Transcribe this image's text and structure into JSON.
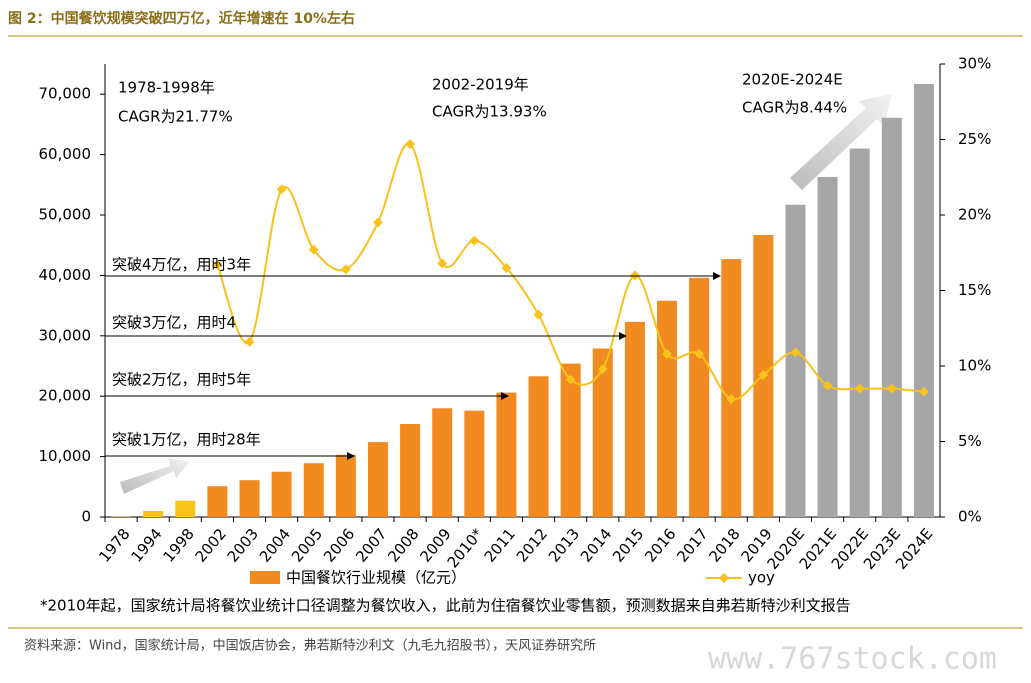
{
  "chart_data": {
    "type": "bar",
    "title": "图 2：中国餐饮规模突破四万亿，近年增速在 10%左右",
    "categories": [
      "1978",
      "1994",
      "1998",
      "2002",
      "2003",
      "2004",
      "2005",
      "2006",
      "2007",
      "2008",
      "2009",
      "2010*",
      "2011",
      "2012",
      "2013",
      "2014",
      "2015",
      "2016",
      "2017",
      "2018",
      "2019",
      "2020E",
      "2021E",
      "2022E",
      "2023E",
      "2024E"
    ],
    "series": [
      {
        "name": "中国餐饮行业规模（亿元）",
        "color": "#f28a22",
        "colors": [
          "#f8c21c",
          "#f8c21c",
          "#f8c21c",
          "#f28a22",
          "#f28a22",
          "#f28a22",
          "#f28a22",
          "#f28a22",
          "#f28a22",
          "#f28a22",
          "#f28a22",
          "#f28a22",
          "#f28a22",
          "#f28a22",
          "#f28a22",
          "#f28a22",
          "#f28a22",
          "#f28a22",
          "#f28a22",
          "#f28a22",
          "#f28a22",
          "#a6a6a6",
          "#a6a6a6",
          "#a6a6a6",
          "#a6a6a6",
          "#a6a6a6"
        ],
        "values": [
          55,
          1000,
          2700,
          5100,
          6100,
          7500,
          8900,
          10300,
          12400,
          15400,
          18000,
          17600,
          20600,
          23300,
          25400,
          27900,
          32300,
          35800,
          39600,
          42700,
          46700,
          51700,
          56300,
          61000,
          66100,
          71700
        ]
      },
      {
        "name": "yoy",
        "type": "line",
        "axis": "y2",
        "color": "#f8c21c",
        "values": [
          null,
          null,
          null,
          16.7,
          11.6,
          21.7,
          17.7,
          16.4,
          19.5,
          24.7,
          16.8,
          18.3,
          16.5,
          13.4,
          9.1,
          9.8,
          16.0,
          10.8,
          10.8,
          7.8,
          9.4,
          10.9,
          8.7,
          8.5,
          8.5,
          8.3
        ]
      }
    ],
    "ylim": [
      0,
      75000
    ],
    "yticks": [
      0,
      {
        "value": 10000,
        "label": "10,000"
      },
      {
        "value": 20000,
        "label": "20,000"
      },
      {
        "value": 30000,
        "label": "30,000"
      },
      {
        "value": 40000,
        "label": "40,000"
      },
      {
        "value": 50000,
        "label": "50,000"
      },
      {
        "value": 60000,
        "label": "60,000"
      },
      {
        "value": 70000,
        "label": "70,000"
      }
    ],
    "y2lim": [
      0,
      30
    ],
    "y2ticks": [
      {
        "value": 0,
        "label": "0%"
      },
      {
        "value": 5,
        "label": "5%"
      },
      {
        "value": 10,
        "label": "10%"
      },
      {
        "value": 15,
        "label": "15%"
      },
      {
        "value": 20,
        "label": "20%"
      },
      {
        "value": 25,
        "label": "25%"
      },
      {
        "value": 30,
        "label": "30%"
      }
    ],
    "annotations": [
      "1978-1998年",
      "CAGR为21.77%",
      "2002-2019年",
      "CAGR为13.93%",
      "2020E-2024E",
      "CAGR为8.44%",
      "突破4万亿，用时3年",
      "突破3万亿，用时4",
      "突破2万亿，用时5年",
      "突破1万亿，用时28年"
    ],
    "footnote": "*2010年起，国家统计局将餐饮业统计口径调整为餐饮收入，此前为住宿餐饮业零售额，预测数据来自弗若斯特沙利文报告",
    "source": "资料来源：Wind，国家统计局，中国饭店协会，弗若斯特沙利文（九毛九招股书），天风证券研究所",
    "watermark": "www.767stock.com"
  }
}
